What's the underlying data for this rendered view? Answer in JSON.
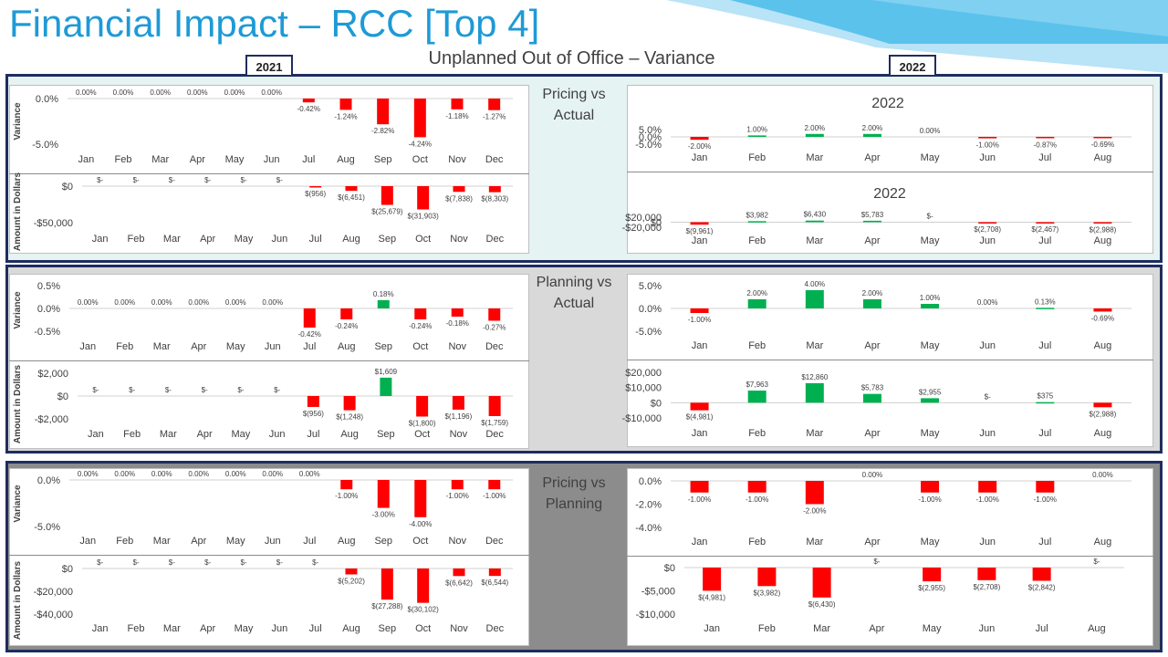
{
  "page": {
    "title": "Financial Impact – RCC [Top 4]",
    "subtitle": "Unplanned Out of Office – Variance",
    "year_left": "2021",
    "year_right": "2022"
  },
  "sections": [
    {
      "title_line1": "Pricing vs",
      "title_line2": "Actual"
    },
    {
      "title_line1": "Planning vs",
      "title_line2": "Actual"
    },
    {
      "title_line1": "Pricing vs",
      "title_line2": "Planning"
    }
  ],
  "row_labels": {
    "variance": "Variance",
    "amount": "Amount in Dollars"
  },
  "colors": {
    "negative": "#ff0000",
    "positive": "#00b050",
    "band1": "#e6f3f3",
    "band2": "#d9d9d9",
    "band3": "#8c8c8c",
    "border": "#1f2d5e",
    "title": "#1e9ad6"
  },
  "chart_data": [
    {
      "id": "pa-var-2021",
      "type": "bar",
      "categories": [
        "Jan",
        "Feb",
        "Mar",
        "Apr",
        "May",
        "Jun",
        "Jul",
        "Aug",
        "Sep",
        "Oct",
        "Nov",
        "Dec"
      ],
      "values": [
        0,
        0,
        0,
        0,
        0,
        0,
        -0.42,
        -1.24,
        -2.82,
        -4.24,
        -1.18,
        -1.27
      ],
      "data_labels": [
        "0.00%",
        "0.00%",
        "0.00%",
        "0.00%",
        "0.00%",
        "0.00%",
        "-0.42%",
        "-1.24%",
        "-2.82%",
        "-4.24%",
        "-1.18%",
        "-1.27%"
      ],
      "y_ticks": [
        {
          "v": 0,
          "label": "0.0%"
        },
        {
          "v": -5,
          "label": "-5.0%"
        }
      ],
      "ylim": [
        -5,
        0
      ],
      "title": ""
    },
    {
      "id": "pa-amt-2021",
      "type": "bar",
      "categories": [
        "Jan",
        "Feb",
        "Mar",
        "Apr",
        "May",
        "Jun",
        "Jul",
        "Aug",
        "Sep",
        "Oct",
        "Nov",
        "Dec"
      ],
      "values": [
        0,
        0,
        0,
        0,
        0,
        0,
        -956,
        -6451,
        -25679,
        -31903,
        -7838,
        -8303
      ],
      "data_labels": [
        "$-",
        "$-",
        "$-",
        "$-",
        "$-",
        "$-",
        "$(956)",
        "$(6,451)",
        "$(25,679)",
        "$(31,903)",
        "$(7,838)",
        "$(8,303)"
      ],
      "y_ticks": [
        {
          "v": 0,
          "label": "$0"
        },
        {
          "v": -50000,
          "label": "-$50,000"
        }
      ],
      "ylim": [
        -50000,
        0
      ],
      "title": ""
    },
    {
      "id": "pa-var-2022",
      "type": "bar",
      "categories": [
        "Jan",
        "Feb",
        "Mar",
        "Apr",
        "May",
        "Jun",
        "Jul",
        "Aug"
      ],
      "values": [
        -2,
        1,
        2,
        2,
        0,
        -1,
        -0.87,
        -0.69
      ],
      "data_labels": [
        "-2.00%",
        "1.00%",
        "2.00%",
        "2.00%",
        "0.00%",
        "-1.00%",
        "-0.87%",
        "-0.69%"
      ],
      "y_ticks": [
        {
          "v": 5,
          "label": "5.0%"
        },
        {
          "v": 0,
          "label": "0.0%"
        },
        {
          "v": -5,
          "label": "-5.0%"
        }
      ],
      "ylim": [
        -5,
        5
      ],
      "title": "2022"
    },
    {
      "id": "pa-amt-2022",
      "type": "bar",
      "categories": [
        "Jan",
        "Feb",
        "Mar",
        "Apr",
        "May",
        "Jun",
        "Jul",
        "Aug"
      ],
      "values": [
        -9961,
        3982,
        6430,
        5783,
        0,
        -2708,
        -2467,
        -2988
      ],
      "data_labels": [
        "$(9,961)",
        "$3,982",
        "$6,430",
        "$5,783",
        "$-",
        "$(2,708)",
        "$(2,467)",
        "$(2,988)"
      ],
      "y_ticks": [
        {
          "v": 20000,
          "label": "$20,000"
        },
        {
          "v": 0,
          "label": "$0"
        },
        {
          "v": -20000,
          "label": "-$20,000"
        }
      ],
      "ylim": [
        -20000,
        20000
      ],
      "title": "2022"
    },
    {
      "id": "pla-var-2021",
      "type": "bar",
      "categories": [
        "Jan",
        "Feb",
        "Mar",
        "Apr",
        "May",
        "Jun",
        "Jul",
        "Aug",
        "Sep",
        "Oct",
        "Nov",
        "Dec"
      ],
      "values": [
        0,
        0,
        0,
        0,
        0,
        0,
        -0.42,
        -0.24,
        0.18,
        -0.24,
        -0.18,
        -0.27
      ],
      "data_labels": [
        "0.00%",
        "0.00%",
        "0.00%",
        "0.00%",
        "0.00%",
        "0.00%",
        "-0.42%",
        "-0.24%",
        "0.18%",
        "-0.24%",
        "-0.18%",
        "-0.27%"
      ],
      "y_ticks": [
        {
          "v": 0.5,
          "label": "0.5%"
        },
        {
          "v": 0,
          "label": "0.0%"
        },
        {
          "v": -0.5,
          "label": "-0.5%"
        }
      ],
      "ylim": [
        -0.5,
        0.5
      ],
      "title": ""
    },
    {
      "id": "pla-amt-2021",
      "type": "bar",
      "categories": [
        "Jan",
        "Feb",
        "Mar",
        "Apr",
        "May",
        "Jun",
        "Jul",
        "Aug",
        "Sep",
        "Oct",
        "Nov",
        "Dec"
      ],
      "values": [
        0,
        0,
        0,
        0,
        0,
        0,
        -956,
        -1248,
        1609,
        -1800,
        -1196,
        -1759
      ],
      "data_labels": [
        "$-",
        "$-",
        "$-",
        "$-",
        "$-",
        "$-",
        "$(956)",
        "$(1,248)",
        "$1,609",
        "$(1,800)",
        "$(1,196)",
        "$(1,759)"
      ],
      "y_ticks": [
        {
          "v": 2000,
          "label": "$2,000"
        },
        {
          "v": 0,
          "label": "$0"
        },
        {
          "v": -2000,
          "label": "-$2,000"
        }
      ],
      "ylim": [
        -2000,
        2000
      ],
      "title": ""
    },
    {
      "id": "pla-var-2022",
      "type": "bar",
      "categories": [
        "Jan",
        "Feb",
        "Mar",
        "Apr",
        "May",
        "Jun",
        "Jul",
        "Aug"
      ],
      "values": [
        -1,
        2,
        4,
        2,
        1,
        0,
        0.13,
        -0.69
      ],
      "data_labels": [
        "-1.00%",
        "2.00%",
        "4.00%",
        "2.00%",
        "1.00%",
        "0.00%",
        "0.13%",
        "-0.69%"
      ],
      "y_ticks": [
        {
          "v": 5,
          "label": "5.0%"
        },
        {
          "v": 0,
          "label": "0.0%"
        },
        {
          "v": -5,
          "label": "-5.0%"
        }
      ],
      "ylim": [
        -5,
        5
      ],
      "title": ""
    },
    {
      "id": "pla-amt-2022",
      "type": "bar",
      "categories": [
        "Jan",
        "Feb",
        "Mar",
        "Apr",
        "May",
        "Jun",
        "Jul",
        "Aug"
      ],
      "values": [
        -4981,
        7963,
        12860,
        5783,
        2955,
        0,
        375,
        -2988
      ],
      "data_labels": [
        "$(4,981)",
        "$7,963",
        "$12,860",
        "$5,783",
        "$2,955",
        "$-",
        "$375",
        "$(2,988)"
      ],
      "y_ticks": [
        {
          "v": 20000,
          "label": "$20,000"
        },
        {
          "v": 10000,
          "label": "$10,000"
        },
        {
          "v": 0,
          "label": "$0"
        },
        {
          "v": -10000,
          "label": "-$10,000"
        }
      ],
      "ylim": [
        -10000,
        20000
      ],
      "title": ""
    },
    {
      "id": "pp-var-2021",
      "type": "bar",
      "categories": [
        "Jan",
        "Feb",
        "Mar",
        "Apr",
        "May",
        "Jun",
        "Jul",
        "Aug",
        "Sep",
        "Oct",
        "Nov",
        "Dec"
      ],
      "values": [
        0,
        0,
        0,
        0,
        0,
        0,
        0,
        -1,
        -3,
        -4,
        -1,
        -1
      ],
      "data_labels": [
        "0.00%",
        "0.00%",
        "0.00%",
        "0.00%",
        "0.00%",
        "0.00%",
        "0.00%",
        "-1.00%",
        "-3.00%",
        "-4.00%",
        "-1.00%",
        "-1.00%"
      ],
      "y_ticks": [
        {
          "v": 0,
          "label": "0.0%"
        },
        {
          "v": -5,
          "label": "-5.0%"
        }
      ],
      "ylim": [
        -5,
        0
      ],
      "title": ""
    },
    {
      "id": "pp-amt-2021",
      "type": "bar",
      "categories": [
        "Jan",
        "Feb",
        "Mar",
        "Apr",
        "May",
        "Jun",
        "Jul",
        "Aug",
        "Sep",
        "Oct",
        "Nov",
        "Dec"
      ],
      "values": [
        0,
        0,
        0,
        0,
        0,
        0,
        0,
        -5202,
        -27288,
        -30102,
        -6642,
        -6544
      ],
      "data_labels": [
        "$-",
        "$-",
        "$-",
        "$-",
        "$-",
        "$-",
        "$-",
        "$(5,202)",
        "$(27,288)",
        "$(30,102)",
        "$(6,642)",
        "$(6,544)"
      ],
      "y_ticks": [
        {
          "v": 0,
          "label": "$0"
        },
        {
          "v": -20000,
          "label": "-$20,000"
        },
        {
          "v": -40000,
          "label": "-$40,000"
        }
      ],
      "ylim": [
        -40000,
        0
      ],
      "title": ""
    },
    {
      "id": "pp-var-2022",
      "type": "bar",
      "categories": [
        "Jan",
        "Feb",
        "Mar",
        "Apr",
        "May",
        "Jun",
        "Jul",
        "Aug"
      ],
      "values": [
        -1,
        -1,
        -2,
        0,
        -1,
        -1,
        -1,
        0
      ],
      "data_labels": [
        "-1.00%",
        "-1.00%",
        "-2.00%",
        "0.00%",
        "-1.00%",
        "-1.00%",
        "-1.00%",
        "0.00%"
      ],
      "y_ticks": [
        {
          "v": 0,
          "label": "0.0%"
        },
        {
          "v": -2,
          "label": "-2.0%"
        },
        {
          "v": -4,
          "label": "-4.0%"
        }
      ],
      "ylim": [
        -4,
        0
      ],
      "title": ""
    },
    {
      "id": "pp-amt-2022",
      "type": "bar",
      "categories": [
        "Jan",
        "Feb",
        "Mar",
        "Apr",
        "May",
        "Jun",
        "Jul",
        "Aug"
      ],
      "values": [
        -4981,
        -3982,
        -6430,
        0,
        -2955,
        -2708,
        -2842,
        0
      ],
      "data_labels": [
        "$(4,981)",
        "$(3,982)",
        "$(6,430)",
        "$-",
        "$(2,955)",
        "$(2,708)",
        "$(2,842)",
        "$-"
      ],
      "y_ticks": [
        {
          "v": 0,
          "label": "$0"
        },
        {
          "v": -5000,
          "label": "-$5,000"
        },
        {
          "v": -10000,
          "label": "-$10,000"
        }
      ],
      "ylim": [
        -10000,
        0
      ],
      "title": ""
    }
  ]
}
